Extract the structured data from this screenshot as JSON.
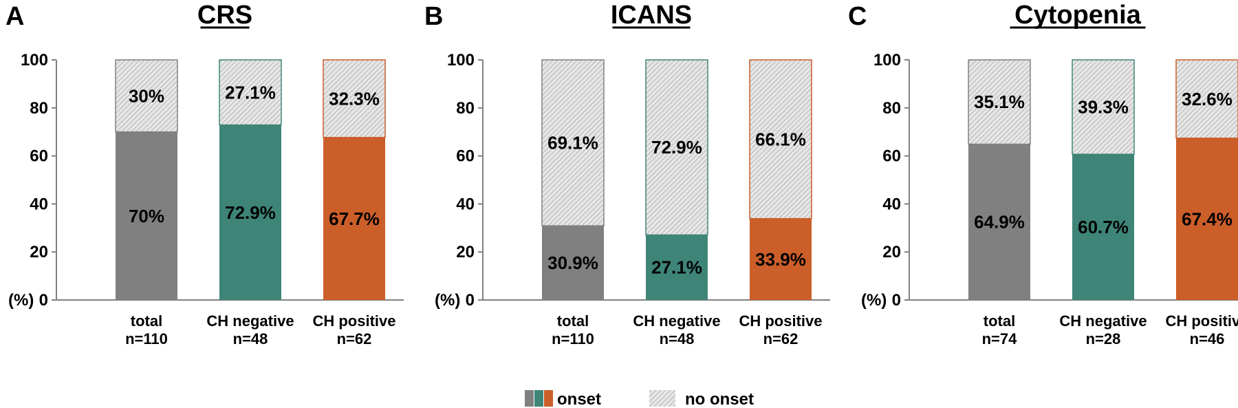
{
  "colors": {
    "total": "#808080",
    "ch_negative": "#3e8578",
    "ch_positive": "#cc5e2a",
    "no_onset_fill": "#e6e6e6",
    "axis": "#808080"
  },
  "legend": {
    "onset_label": "onset",
    "no_onset_label": "no onset"
  },
  "chart_data": [
    {
      "type": "bar",
      "stacked": true,
      "panel": "A",
      "title": "CRS",
      "ylabel": "(%)",
      "ylim": [
        0,
        100
      ],
      "yticks": [
        0,
        20,
        40,
        60,
        80,
        100
      ],
      "categories": [
        "total",
        "CH negative",
        "CH positive"
      ],
      "n_labels": [
        "n=110",
        "n=48",
        "n=62"
      ],
      "series": [
        {
          "name": "onset",
          "values": [
            70,
            72.9,
            67.7
          ],
          "labels": [
            "70%",
            "72.9%",
            "67.7%"
          ]
        },
        {
          "name": "no onset",
          "values": [
            30,
            27.1,
            32.3
          ],
          "labels": [
            "30%",
            "27.1%",
            "32.3%"
          ]
        }
      ]
    },
    {
      "type": "bar",
      "stacked": true,
      "panel": "B",
      "title": "ICANS",
      "ylabel": "(%)",
      "ylim": [
        0,
        100
      ],
      "yticks": [
        0,
        20,
        40,
        60,
        80,
        100
      ],
      "categories": [
        "total",
        "CH negative",
        "CH positive"
      ],
      "n_labels": [
        "n=110",
        "n=48",
        "n=62"
      ],
      "series": [
        {
          "name": "onset",
          "values": [
            30.9,
            27.1,
            33.9
          ],
          "labels": [
            "30.9%",
            "27.1%",
            "33.9%"
          ]
        },
        {
          "name": "no onset",
          "values": [
            69.1,
            72.9,
            66.1
          ],
          "labels": [
            "69.1%",
            "72.9%",
            "66.1%"
          ]
        }
      ]
    },
    {
      "type": "bar",
      "stacked": true,
      "panel": "C",
      "title": "Cytopenia",
      "ylabel": "(%)",
      "ylim": [
        0,
        100
      ],
      "yticks": [
        0,
        20,
        40,
        60,
        80,
        100
      ],
      "categories": [
        "total",
        "CH negative",
        "CH positive"
      ],
      "n_labels": [
        "n=74",
        "n=28",
        "n=46"
      ],
      "series": [
        {
          "name": "onset",
          "values": [
            64.9,
            60.7,
            67.4
          ],
          "labels": [
            "64.9%",
            "60.7%",
            "67.4%"
          ]
        },
        {
          "name": "no onset",
          "values": [
            35.1,
            39.3,
            32.6
          ],
          "labels": [
            "35.1%",
            "39.3%",
            "32.6%"
          ]
        }
      ]
    }
  ]
}
